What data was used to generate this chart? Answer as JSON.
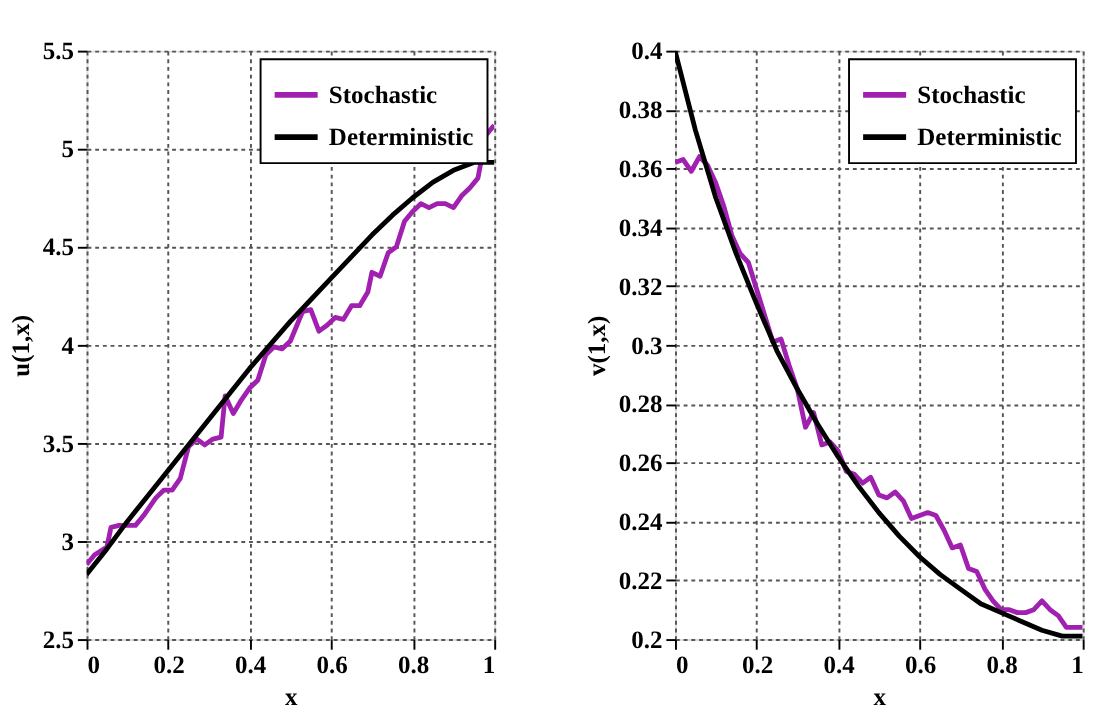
{
  "chart_data": [
    {
      "type": "line",
      "xlabel": "x",
      "ylabel": "u(1,x)",
      "xlim": [
        0,
        1
      ],
      "ylim": [
        2.5,
        5.5
      ],
      "xticks": [
        0,
        0.2,
        0.4,
        0.6,
        0.8,
        1
      ],
      "yticks": [
        2.5,
        3,
        3.5,
        4,
        4.5,
        5,
        5.5
      ],
      "grid": true,
      "legend": "top right",
      "line_style": "solid",
      "marker": "none",
      "series": [
        {
          "name": "Stochastic",
          "color": "#a020b0",
          "x": [
            0,
            0.02,
            0.05,
            0.06,
            0.08,
            0.1,
            0.12,
            0.14,
            0.17,
            0.19,
            0.21,
            0.23,
            0.25,
            0.27,
            0.29,
            0.31,
            0.33,
            0.34,
            0.36,
            0.38,
            0.4,
            0.42,
            0.44,
            0.46,
            0.48,
            0.5,
            0.53,
            0.55,
            0.57,
            0.59,
            0.61,
            0.63,
            0.65,
            0.67,
            0.69,
            0.7,
            0.72,
            0.74,
            0.76,
            0.78,
            0.8,
            0.82,
            0.84,
            0.86,
            0.88,
            0.9,
            0.92,
            0.94,
            0.96,
            0.98,
            1.0
          ],
          "values": [
            2.88,
            2.93,
            2.97,
            3.07,
            3.08,
            3.08,
            3.08,
            3.13,
            3.22,
            3.26,
            3.26,
            3.32,
            3.48,
            3.52,
            3.49,
            3.52,
            3.53,
            3.74,
            3.65,
            3.72,
            3.78,
            3.82,
            3.95,
            3.99,
            3.98,
            4.02,
            4.17,
            4.18,
            4.07,
            4.1,
            4.14,
            4.13,
            4.2,
            4.2,
            4.27,
            4.37,
            4.35,
            4.47,
            4.5,
            4.63,
            4.68,
            4.72,
            4.7,
            4.72,
            4.72,
            4.7,
            4.76,
            4.8,
            4.85,
            5.07,
            5.12
          ]
        },
        {
          "name": "Deterministic",
          "color": "#000000",
          "x": [
            0,
            0.05,
            0.1,
            0.15,
            0.2,
            0.25,
            0.3,
            0.35,
            0.4,
            0.45,
            0.5,
            0.55,
            0.6,
            0.65,
            0.7,
            0.75,
            0.8,
            0.85,
            0.9,
            0.95,
            1
          ],
          "values": [
            2.83,
            2.96,
            3.1,
            3.23,
            3.36,
            3.49,
            3.62,
            3.75,
            3.88,
            4.0,
            4.12,
            4.23,
            4.34,
            4.45,
            4.56,
            4.66,
            4.75,
            4.83,
            4.89,
            4.93,
            4.93
          ]
        }
      ]
    },
    {
      "type": "line",
      "xlabel": "x",
      "ylabel": "v(1,x)",
      "xlim": [
        0,
        1
      ],
      "ylim": [
        0.2,
        0.4
      ],
      "xticks": [
        0,
        0.2,
        0.4,
        0.6,
        0.8,
        1
      ],
      "yticks": [
        0.2,
        0.22,
        0.24,
        0.26,
        0.28,
        0.3,
        0.32,
        0.34,
        0.36,
        0.38,
        0.4
      ],
      "grid": true,
      "legend": "top right",
      "line_style": "solid",
      "marker": "none",
      "series": [
        {
          "name": "Stochastic",
          "color": "#a020b0",
          "x": [
            0,
            0.02,
            0.04,
            0.06,
            0.08,
            0.1,
            0.12,
            0.14,
            0.16,
            0.18,
            0.2,
            0.22,
            0.24,
            0.26,
            0.28,
            0.3,
            0.32,
            0.34,
            0.36,
            0.38,
            0.4,
            0.42,
            0.44,
            0.46,
            0.48,
            0.5,
            0.52,
            0.54,
            0.56,
            0.58,
            0.6,
            0.62,
            0.64,
            0.66,
            0.68,
            0.7,
            0.72,
            0.74,
            0.76,
            0.78,
            0.8,
            0.82,
            0.84,
            0.86,
            0.88,
            0.9,
            0.92,
            0.94,
            0.96,
            0.98,
            1.0
          ],
          "values": [
            0.362,
            0.363,
            0.359,
            0.364,
            0.361,
            0.355,
            0.347,
            0.337,
            0.331,
            0.328,
            0.319,
            0.31,
            0.301,
            0.302,
            0.293,
            0.285,
            0.272,
            0.277,
            0.266,
            0.267,
            0.264,
            0.257,
            0.256,
            0.253,
            0.255,
            0.249,
            0.248,
            0.25,
            0.247,
            0.241,
            0.242,
            0.243,
            0.242,
            0.237,
            0.231,
            0.232,
            0.224,
            0.223,
            0.217,
            0.213,
            0.21,
            0.21,
            0.209,
            0.209,
            0.21,
            0.213,
            0.21,
            0.208,
            0.204,
            0.204,
            0.204
          ]
        },
        {
          "name": "Deterministic",
          "color": "#000000",
          "x": [
            0,
            0.05,
            0.1,
            0.15,
            0.2,
            0.25,
            0.3,
            0.35,
            0.4,
            0.45,
            0.5,
            0.55,
            0.6,
            0.65,
            0.7,
            0.75,
            0.8,
            0.85,
            0.9,
            0.95,
            1
          ],
          "values": [
            0.4,
            0.373,
            0.35,
            0.331,
            0.314,
            0.298,
            0.285,
            0.273,
            0.262,
            0.252,
            0.243,
            0.235,
            0.228,
            0.222,
            0.217,
            0.212,
            0.209,
            0.206,
            0.203,
            0.201,
            0.201
          ]
        }
      ]
    }
  ]
}
